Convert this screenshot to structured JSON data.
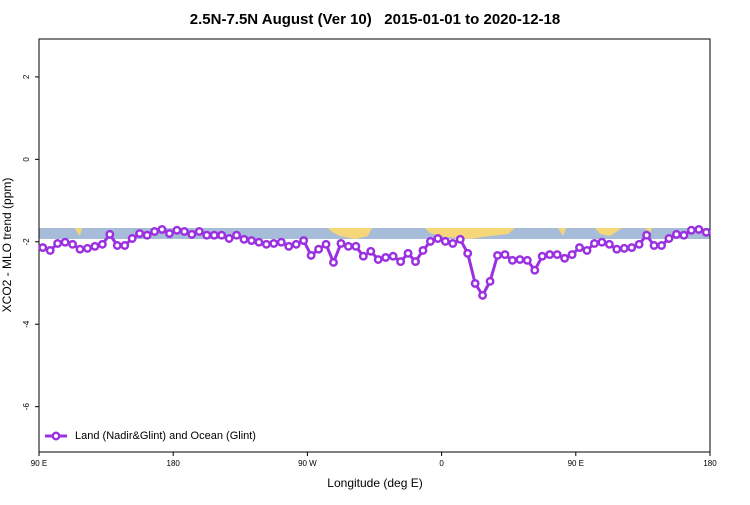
{
  "chart_data": {
    "type": "line",
    "title": "2.5N-7.5N August (Ver 10)   2015-01-01 to 2020-12-18",
    "xlabel": "Longitude (deg E)",
    "ylabel": "XCO2 - MLO trend (ppm)",
    "xlim": [
      90,
      540
    ],
    "ylim": [
      -7.1,
      2.92
    ],
    "xticks": [
      {
        "value": 90,
        "label": "90 E"
      },
      {
        "value": 180,
        "label": "180"
      },
      {
        "value": 270,
        "label": "90 W"
      },
      {
        "value": 360,
        "label": "0"
      },
      {
        "value": 450,
        "label": "90 E"
      },
      {
        "value": 540,
        "label": "180"
      }
    ],
    "yticks": [
      -6,
      -4,
      -2,
      0,
      2
    ],
    "legend": "bottomleft",
    "x": [
      92.5,
      97.5,
      102.5,
      107.5,
      112.5,
      117.5,
      122.5,
      127.5,
      132.5,
      137.5,
      142.5,
      147.5,
      152.5,
      157.5,
      162.5,
      167.5,
      172.5,
      177.5,
      182.5,
      187.5,
      192.5,
      197.5,
      202.5,
      207.5,
      212.5,
      217.5,
      222.5,
      227.5,
      232.5,
      237.5,
      242.5,
      247.5,
      252.5,
      257.5,
      262.5,
      267.5,
      272.5,
      277.5,
      282.5,
      287.5,
      292.5,
      297.5,
      302.5,
      307.5,
      312.5,
      317.5,
      322.5,
      327.5,
      332.5,
      337.5,
      342.5,
      347.5,
      352.5,
      357.5,
      362.5,
      367.5,
      372.5,
      377.5,
      382.5,
      387.5,
      392.5,
      397.5,
      402.5,
      407.5,
      412.5,
      417.5,
      422.5,
      427.5,
      432.5,
      437.5,
      442.5,
      447.5,
      452.5,
      457.5,
      462.5,
      467.5,
      472.5,
      477.5,
      482.5,
      487.5,
      492.5,
      497.5,
      502.5,
      507.5,
      512.5,
      517.5,
      522.5,
      527.5,
      532.5,
      537.5
    ],
    "series": [
      {
        "name": "Land (Nadir&Glint) and Ocean (Glint)",
        "color": "#9b30e0",
        "values": [
          -2.14,
          -2.21,
          -2.04,
          -2.01,
          -2.06,
          -2.18,
          -2.16,
          -2.11,
          -2.06,
          -1.82,
          -2.09,
          -2.09,
          -1.92,
          -1.8,
          -1.84,
          -1.75,
          -1.7,
          -1.8,
          -1.72,
          -1.75,
          -1.82,
          -1.75,
          -1.84,
          -1.84,
          -1.84,
          -1.92,
          -1.84,
          -1.94,
          -1.97,
          -2.01,
          -2.06,
          -2.04,
          -2.01,
          -2.11,
          -2.06,
          -1.97,
          -2.33,
          -2.18,
          -2.06,
          -2.5,
          -2.04,
          -2.11,
          -2.11,
          -2.35,
          -2.23,
          -2.43,
          -2.38,
          -2.35,
          -2.48,
          -2.28,
          -2.48,
          -2.21,
          -1.99,
          -1.92,
          -1.99,
          -2.04,
          -1.94,
          -2.28,
          -3.01,
          -3.3,
          -2.96,
          -2.33,
          -2.31,
          -2.45,
          -2.43,
          -2.45,
          -2.69,
          -2.35,
          -2.31,
          -2.31,
          -2.4,
          -2.31,
          -2.14,
          -2.21,
          -2.04,
          -2.01,
          -2.06,
          -2.18,
          -2.16,
          -2.14,
          -2.06,
          -1.84,
          -2.09,
          -2.09,
          -1.92,
          -1.82,
          -1.84,
          -1.72,
          -1.7,
          -1.77
        ]
      }
    ]
  }
}
